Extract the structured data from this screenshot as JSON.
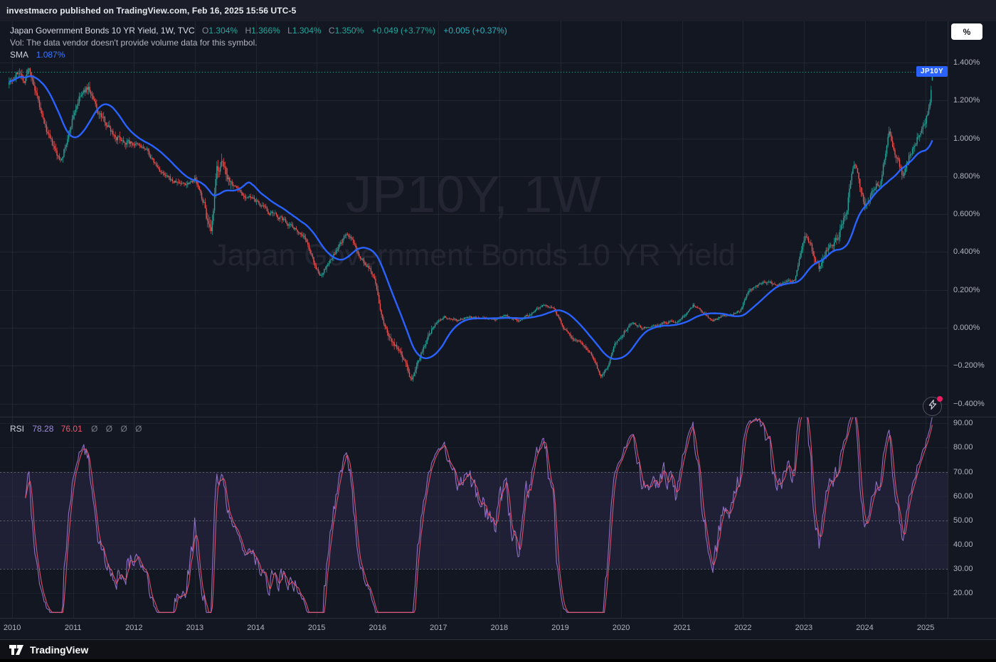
{
  "publish_bar": {
    "text": "investmacro published on TradingView.com, Feb 16, 2025 15:56 UTC-5"
  },
  "legend": {
    "title": "Japan Government Bonds 10 YR Yield, 1W, TVC",
    "o_label": "O",
    "o_value": "1.304%",
    "h_label": "H",
    "h_value": "1.366%",
    "l_label": "L",
    "l_value": "1.304%",
    "c_label": "C",
    "c_value": "1.350%",
    "change": "+0.049 (+3.77%)",
    "ext_change": "+0.005 (+0.37%)",
    "vol_note": "Vol: The data vendor doesn't provide volume data for this symbol.",
    "sma_label": "SMA",
    "sma_value": "1.087%"
  },
  "rsi_legend": {
    "label": "RSI",
    "value1": "78.28",
    "value2": "76.01",
    "params": "Ø Ø Ø Ø"
  },
  "watermark": {
    "line1": "JP10Y, 1W",
    "line2": "Japan Government Bonds 10 YR Yield"
  },
  "price_axis": {
    "unit_button": "%",
    "symbol_badge": "JP10Y",
    "labels": [
      "1.400%",
      "1.200%",
      "1.000%",
      "0.800%",
      "0.600%",
      "0.400%",
      "0.200%",
      "0.000%",
      "−0.200%",
      "−0.400%"
    ]
  },
  "rsi_axis": {
    "labels": [
      "90.00",
      "80.00",
      "70.00",
      "60.00",
      "50.00",
      "40.00",
      "30.00",
      "20.00"
    ]
  },
  "time_axis": {
    "labels": [
      "2010",
      "2011",
      "2012",
      "2013",
      "2014",
      "2015",
      "2016",
      "2017",
      "2018",
      "2019",
      "2020",
      "2021",
      "2022",
      "2023",
      "2024",
      "2025"
    ]
  },
  "footer": {
    "brand": "TradingView"
  },
  "colors": {
    "background": "#131722",
    "candle_up": "#26a69a",
    "candle_down": "#ef5350",
    "sma_line": "#2962ff",
    "rsi_line": "#9575cd",
    "rsi_ma_line": "#f0566b",
    "grid": "#2a2e39",
    "axis_text": "#b2b5be",
    "badge_bg": "#2962ff",
    "price_line": "#26a69a"
  },
  "chart_data": {
    "type": "candlestick",
    "symbol": "JP10Y",
    "timeframe": "1W",
    "title": "Japan Government Bonds 10 YR Yield",
    "unit": "%",
    "last_bar": {
      "open": 1.304,
      "high": 1.366,
      "low": 1.304,
      "close": 1.35
    },
    "change": 0.049,
    "change_pct": 3.77,
    "ext_change": 0.005,
    "ext_change_pct": 0.37,
    "sma_period": 30,
    "sma_last": 1.087,
    "price_line": 1.35,
    "x_ticks": [
      2010,
      2011,
      2012,
      2013,
      2014,
      2015,
      2016,
      2017,
      2018,
      2019,
      2020,
      2021,
      2022,
      2023,
      2024,
      2025
    ],
    "price_gridlines": [
      1.4,
      1.2,
      1.0,
      0.8,
      0.6,
      0.4,
      0.2,
      0.0,
      -0.2,
      -0.4
    ],
    "y_axis": {
      "min": -0.45,
      "max": 1.46,
      "tick_step": 0.2
    },
    "yield_path_anchors": [
      [
        2009.95,
        1.31
      ],
      [
        2010.05,
        1.33
      ],
      [
        2010.12,
        1.36
      ],
      [
        2010.2,
        1.3
      ],
      [
        2010.28,
        1.38
      ],
      [
        2010.36,
        1.26
      ],
      [
        2010.5,
        1.1
      ],
      [
        2010.62,
        0.99
      ],
      [
        2010.78,
        0.88
      ],
      [
        2010.9,
        0.98
      ],
      [
        2011.0,
        1.12
      ],
      [
        2011.1,
        1.21
      ],
      [
        2011.25,
        1.27
      ],
      [
        2011.4,
        1.14
      ],
      [
        2011.55,
        1.08
      ],
      [
        2011.7,
        1.01
      ],
      [
        2011.85,
        0.99
      ],
      [
        2012.0,
        0.97
      ],
      [
        2012.2,
        0.94
      ],
      [
        2012.35,
        0.86
      ],
      [
        2012.5,
        0.8
      ],
      [
        2012.65,
        0.77
      ],
      [
        2012.85,
        0.76
      ],
      [
        2013.0,
        0.79
      ],
      [
        2013.15,
        0.65
      ],
      [
        2013.27,
        0.47
      ],
      [
        2013.36,
        0.83
      ],
      [
        2013.45,
        0.86
      ],
      [
        2013.6,
        0.77
      ],
      [
        2013.8,
        0.7
      ],
      [
        2014.0,
        0.67
      ],
      [
        2014.2,
        0.61
      ],
      [
        2014.4,
        0.58
      ],
      [
        2014.6,
        0.54
      ],
      [
        2014.8,
        0.48
      ],
      [
        2014.95,
        0.35
      ],
      [
        2015.05,
        0.27
      ],
      [
        2015.2,
        0.34
      ],
      [
        2015.35,
        0.42
      ],
      [
        2015.5,
        0.5
      ],
      [
        2015.65,
        0.42
      ],
      [
        2015.8,
        0.33
      ],
      [
        2015.95,
        0.27
      ],
      [
        2016.05,
        0.08
      ],
      [
        2016.15,
        -0.02
      ],
      [
        2016.3,
        -0.1
      ],
      [
        2016.45,
        -0.17
      ],
      [
        2016.55,
        -0.27
      ],
      [
        2016.65,
        -0.18
      ],
      [
        2016.8,
        -0.07
      ],
      [
        2016.95,
        0.02
      ],
      [
        2017.1,
        0.06
      ],
      [
        2017.3,
        0.04
      ],
      [
        2017.5,
        0.06
      ],
      [
        2017.7,
        0.05
      ],
      [
        2017.9,
        0.04
      ],
      [
        2018.1,
        0.06
      ],
      [
        2018.3,
        0.04
      ],
      [
        2018.55,
        0.08
      ],
      [
        2018.72,
        0.13
      ],
      [
        2018.9,
        0.1
      ],
      [
        2019.05,
        0.0
      ],
      [
        2019.2,
        -0.05
      ],
      [
        2019.4,
        -0.1
      ],
      [
        2019.55,
        -0.16
      ],
      [
        2019.66,
        -0.26
      ],
      [
        2019.78,
        -0.21
      ],
      [
        2019.9,
        -0.08
      ],
      [
        2020.05,
        -0.02
      ],
      [
        2020.18,
        0.03
      ],
      [
        2020.35,
        0.0
      ],
      [
        2020.55,
        0.01
      ],
      [
        2020.75,
        0.03
      ],
      [
        2020.9,
        0.03
      ],
      [
        2021.05,
        0.07
      ],
      [
        2021.18,
        0.12
      ],
      [
        2021.35,
        0.08
      ],
      [
        2021.5,
        0.03
      ],
      [
        2021.65,
        0.06
      ],
      [
        2021.8,
        0.07
      ],
      [
        2021.95,
        0.09
      ],
      [
        2022.1,
        0.2
      ],
      [
        2022.25,
        0.23
      ],
      [
        2022.4,
        0.24
      ],
      [
        2022.55,
        0.22
      ],
      [
        2022.7,
        0.24
      ],
      [
        2022.85,
        0.25
      ],
      [
        2022.97,
        0.43
      ],
      [
        2023.05,
        0.49
      ],
      [
        2023.15,
        0.4
      ],
      [
        2023.25,
        0.31
      ],
      [
        2023.4,
        0.42
      ],
      [
        2023.55,
        0.47
      ],
      [
        2023.7,
        0.62
      ],
      [
        2023.82,
        0.88
      ],
      [
        2023.92,
        0.75
      ],
      [
        2024.0,
        0.64
      ],
      [
        2024.12,
        0.73
      ],
      [
        2024.25,
        0.77
      ],
      [
        2024.4,
        1.04
      ],
      [
        2024.5,
        0.93
      ],
      [
        2024.62,
        0.8
      ],
      [
        2024.75,
        0.93
      ],
      [
        2024.88,
        1.02
      ],
      [
        2025.0,
        1.09
      ],
      [
        2025.06,
        1.18
      ],
      [
        2025.1,
        1.28
      ],
      [
        2025.125,
        1.35
      ]
    ],
    "rsi": {
      "period": 14,
      "last": 78.28,
      "ma_last": 76.01,
      "upper_band": 70,
      "middle": 50,
      "lower_band": 30,
      "gridlines": [
        90,
        80,
        70,
        60,
        50,
        40,
        30,
        20
      ],
      "range": [
        20,
        90
      ]
    }
  }
}
